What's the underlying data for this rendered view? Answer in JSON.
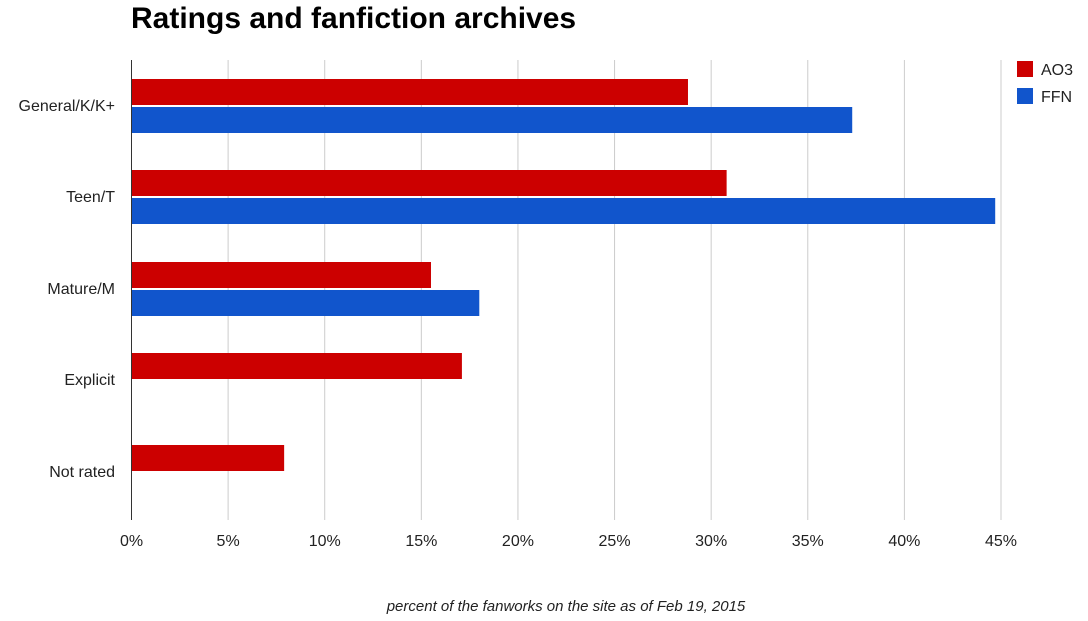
{
  "chart_data": {
    "type": "bar",
    "orientation": "horizontal",
    "title": "Ratings and fanfiction archives",
    "xlabel": "percent of the fanworks on the site as of Feb 19, 2015",
    "ylabel": "",
    "categories": [
      "General/K/K+",
      "Teen/T",
      "Mature/M",
      "Explicit",
      "Not rated"
    ],
    "series": [
      {
        "name": "AO3",
        "color": "#cc0000",
        "values": [
          28.8,
          30.8,
          15.5,
          17.1,
          7.9
        ]
      },
      {
        "name": "FFN",
        "color": "#1155cc",
        "values": [
          37.3,
          44.7,
          18.0,
          null,
          null
        ]
      }
    ],
    "xlim": [
      0,
      45
    ],
    "xticks": [
      0,
      5,
      10,
      15,
      20,
      25,
      30,
      35,
      40,
      45
    ],
    "xtick_labels": [
      "0%",
      "5%",
      "10%",
      "15%",
      "20%",
      "25%",
      "30%",
      "35%",
      "40%",
      "45%"
    ],
    "grid": true,
    "legend_position": "top-right"
  }
}
